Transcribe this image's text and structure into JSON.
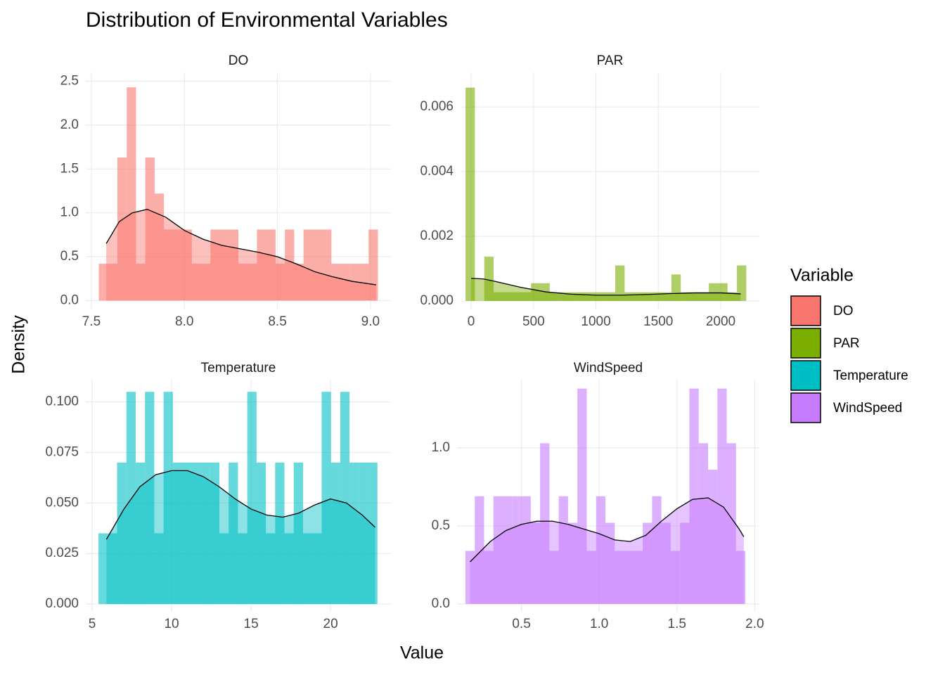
{
  "figure": {
    "title": "Distribution of Environmental Variables",
    "x_label": "Value",
    "y_label": "Density",
    "legend_title": "Variable"
  },
  "chart_data": [
    {
      "type": "histogram",
      "title": "DO",
      "bins": [
        7.54,
        7.59,
        7.64,
        7.69,
        7.74,
        7.79,
        7.84,
        7.89,
        7.94,
        7.99,
        8.04,
        8.09,
        8.14,
        8.19,
        8.24,
        8.29,
        8.34,
        8.39,
        8.44,
        8.49,
        8.54,
        8.59,
        8.64,
        8.69,
        8.74,
        8.79,
        8.84,
        8.89,
        8.94,
        8.99,
        9.04
      ],
      "series": [
        {
          "name": "DO",
          "color": "#F8766D",
          "values": [
            0.42,
            0.42,
            1.63,
            2.43,
            0.42,
            1.63,
            1.22,
            0.81,
            0.81,
            0.81,
            0.42,
            0.42,
            0.81,
            0.81,
            0.81,
            0.42,
            0.42,
            0.81,
            0.81,
            0.42,
            0.81,
            0.42,
            0.81,
            0.81,
            0.81,
            0.42,
            0.42,
            0.42,
            0.42,
            0.81
          ]
        }
      ],
      "curve": {
        "x": [
          7.58,
          7.65,
          7.72,
          7.8,
          7.9,
          8.0,
          8.1,
          8.2,
          8.3,
          8.4,
          8.5,
          8.6,
          8.7,
          8.8,
          8.9,
          9.03
        ],
        "values": [
          0.65,
          0.9,
          1.0,
          1.04,
          0.95,
          0.8,
          0.7,
          0.63,
          0.59,
          0.55,
          0.5,
          0.42,
          0.33,
          0.27,
          0.22,
          0.18
        ]
      },
      "xlim": [
        7.47,
        9.11
      ],
      "ylim": [
        -0.1,
        2.6
      ],
      "xticks": [
        7.5,
        {
          "value": 8,
          "label": "8.0"
        },
        8.5,
        {
          "value": 9,
          "label": "9.0"
        }
      ],
      "yticks": [
        {
          "value": 0,
          "label": "0.0"
        },
        0.5,
        {
          "value": 1,
          "label": "1.0"
        },
        1.5,
        {
          "value": 2,
          "label": "2.0"
        },
        2.5
      ],
      "grid": true
    },
    {
      "type": "histogram",
      "title": "PAR",
      "bins": [
        -45,
        30,
        105,
        180,
        255,
        330,
        405,
        480,
        555,
        630,
        705,
        780,
        855,
        930,
        1005,
        1080,
        1155,
        1230,
        1305,
        1380,
        1455,
        1530,
        1605,
        1680,
        1755,
        1830,
        1905,
        1980,
        2055,
        2130,
        2205
      ],
      "series": [
        {
          "name": "PAR",
          "color": "#7CAE00",
          "values": [
            0.0066,
            0,
            0.00137,
            0.00027,
            0.00027,
            0.00027,
            0.00027,
            0.00055,
            0.00055,
            0.00027,
            0.00027,
            0.00027,
            0.00027,
            0.00027,
            0.00027,
            0.00027,
            0.0011,
            0.00027,
            0.00027,
            0.00027,
            0.00027,
            0.00027,
            0.00082,
            0.00027,
            0.00027,
            0.00027,
            0.00055,
            0.00055,
            0.00027,
            0.0011
          ]
        }
      ],
      "curve": {
        "x": [
          0,
          100,
          200,
          400,
          600,
          800,
          1000,
          1200,
          1400,
          1600,
          1800,
          2000,
          2160
        ],
        "values": [
          0.0007,
          0.00068,
          0.0006,
          0.00042,
          0.00028,
          0.00021,
          0.00018,
          0.00018,
          0.0002,
          0.00023,
          0.00025,
          0.00025,
          0.00022
        ]
      },
      "xlim": [
        -85,
        2310
      ],
      "ylim": [
        -0.00026,
        0.00707
      ],
      "xticks": [
        0,
        500,
        1000,
        1500,
        2000
      ],
      "yticks": [
        {
          "value": 0,
          "label": "0.000"
        },
        {
          "value": 0.002,
          "label": "0.002"
        },
        {
          "value": 0.004,
          "label": "0.004"
        },
        {
          "value": 0.006,
          "label": "0.006"
        }
      ],
      "grid": true
    },
    {
      "type": "histogram",
      "title": "Temperature",
      "bins": [
        5.4,
        5.985,
        6.57,
        7.155,
        7.74,
        8.325,
        8.91,
        9.495,
        10.08,
        10.665,
        11.25,
        11.835,
        12.42,
        13.005,
        13.59,
        14.175,
        14.76,
        15.345,
        15.93,
        16.515,
        17.1,
        17.685,
        18.27,
        18.855,
        19.44,
        20.025,
        20.61,
        21.195,
        21.78,
        22.365,
        22.95
      ],
      "series": [
        {
          "name": "Temperature",
          "color": "#00BFC4",
          "values": [
            0.035,
            0.035,
            0.07,
            0.105,
            0.07,
            0.105,
            0.035,
            0.105,
            0.07,
            0.07,
            0.07,
            0.07,
            0.07,
            0.035,
            0.07,
            0.035,
            0.105,
            0.07,
            0.035,
            0.07,
            0.035,
            0.07,
            0.035,
            0.035,
            0.105,
            0.07,
            0.105,
            0.07,
            0.07,
            0.07
          ]
        }
      ],
      "curve": {
        "x": [
          5.9,
          7,
          8,
          9,
          10,
          11,
          12,
          13,
          14,
          15,
          16,
          17,
          18,
          19,
          20,
          21,
          22,
          22.8
        ],
        "values": [
          0.032,
          0.047,
          0.058,
          0.064,
          0.066,
          0.066,
          0.063,
          0.058,
          0.052,
          0.047,
          0.044,
          0.043,
          0.045,
          0.049,
          0.052,
          0.05,
          0.044,
          0.038
        ]
      },
      "xlim": [
        4.6,
        23.8
      ],
      "ylim": [
        -0.0038,
        0.111
      ],
      "xticks": [
        5,
        10,
        15,
        20
      ],
      "yticks": [
        {
          "value": 0,
          "label": "0.000"
        },
        0.025,
        {
          "value": 0.05,
          "label": "0.050"
        },
        0.075,
        {
          "value": 0.1,
          "label": "0.100"
        }
      ],
      "grid": true
    },
    {
      "type": "histogram",
      "title": "WindSpeed",
      "bins": [
        0.14,
        0.2,
        0.26,
        0.32,
        0.38,
        0.44,
        0.5,
        0.56,
        0.62,
        0.68,
        0.74,
        0.8,
        0.86,
        0.92,
        0.98,
        1.04,
        1.1,
        1.16,
        1.22,
        1.28,
        1.34,
        1.4,
        1.46,
        1.52,
        1.58,
        1.64,
        1.7,
        1.76,
        1.82,
        1.88,
        1.94
      ],
      "series": [
        {
          "name": "WindSpeed",
          "color": "#C77CFF",
          "values": [
            0.34,
            0.69,
            0.34,
            0.69,
            0.69,
            0.69,
            0.69,
            0.52,
            1.03,
            0.34,
            0.69,
            0.52,
            1.38,
            0.34,
            0.69,
            0.52,
            0.34,
            0.34,
            0.34,
            0.52,
            0.69,
            0.52,
            0.34,
            0.52,
            1.38,
            1.03,
            0.86,
            1.38,
            1.03,
            0.34
          ]
        }
      ],
      "curve": {
        "x": [
          0.17,
          0.3,
          0.4,
          0.5,
          0.6,
          0.7,
          0.8,
          0.9,
          1.0,
          1.1,
          1.2,
          1.3,
          1.4,
          1.5,
          1.6,
          1.7,
          1.8,
          1.9,
          1.93
        ],
        "values": [
          0.27,
          0.4,
          0.47,
          0.51,
          0.53,
          0.53,
          0.51,
          0.48,
          0.45,
          0.41,
          0.4,
          0.44,
          0.53,
          0.61,
          0.67,
          0.68,
          0.62,
          0.48,
          0.43
        ]
      },
      "xlim": [
        0.086,
        2.03
      ],
      "ylim": [
        -0.05,
        1.437
      ],
      "xticks": [
        0.5,
        {
          "value": 1,
          "label": "1.0"
        },
        1.5,
        {
          "value": 2,
          "label": "2.0"
        }
      ],
      "yticks": [
        {
          "value": 0,
          "label": "0.0"
        },
        0.5,
        {
          "value": 1,
          "label": "1.0"
        }
      ],
      "grid": true
    }
  ]
}
